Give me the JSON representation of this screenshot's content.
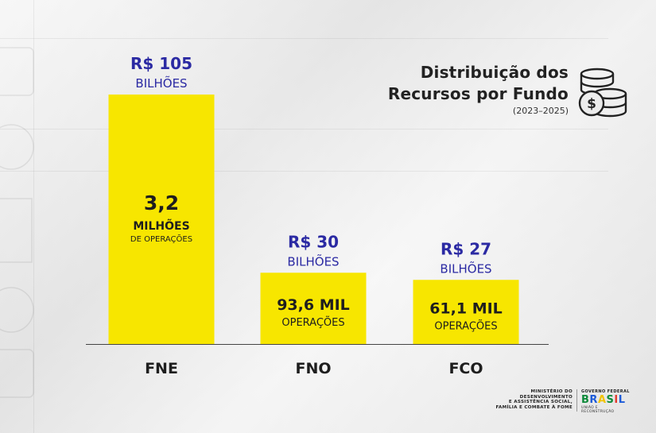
{
  "title_lines": [
    "Distribuição dos",
    "Recursos por Fundo"
  ],
  "subtitle": "(2023–2025)",
  "colors": {
    "bar": "#f7e600",
    "value_text": "#2b2aa3",
    "dark_text": "#1e1e1e",
    "axis": "#444444"
  },
  "icons": {
    "coins": "coins-dollar-icon"
  },
  "ministry_lines": [
    "MINISTÉRIO DO",
    "DESENVOLVIMENTO",
    "E ASSISTÊNCIA SOCIAL,",
    "FAMÍLIA E COMBATE À FOME"
  ],
  "gov": {
    "top": "GOVERNO FEDERAL",
    "letters": [
      "B",
      "R",
      "A",
      "S",
      "I",
      "L"
    ],
    "sub": "UNIÃO E RECONSTRUÇÃO"
  },
  "chart_data": {
    "type": "bar",
    "title": "Distribuição dos Recursos por Fundo",
    "subtitle": "(2023–2025)",
    "categories": [
      "FNE",
      "FNO",
      "FCO"
    ],
    "values": [
      105,
      30,
      27
    ],
    "ylim": [
      0,
      105
    ],
    "grid": false,
    "value_labels": [
      {
        "amount": "R$ 105",
        "unit": "BILHÕES"
      },
      {
        "amount": "R$ 30",
        "unit": "BILHÕES"
      },
      {
        "amount": "R$ 27",
        "unit": "BILHÕES"
      }
    ],
    "operations": [
      {
        "number": "3,2",
        "unit": "MILHÕES",
        "sub": "DE OPERAÇÕES"
      },
      {
        "number": "93,6 MIL",
        "unit": "OPERAÇÕES"
      },
      {
        "number": "61,1 MIL",
        "unit": "OPERAÇÕES"
      }
    ]
  }
}
